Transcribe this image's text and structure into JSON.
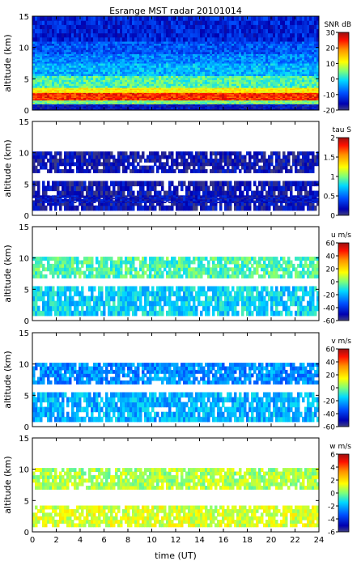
{
  "title": "Esrange MST radar 20101014",
  "xlabel": "time (UT)",
  "x_ticks": [
    "0",
    "2",
    "4",
    "6",
    "8",
    "10",
    "12",
    "14",
    "16",
    "18",
    "20",
    "22",
    "24"
  ],
  "chart_data": [
    {
      "type": "heatmap",
      "quantity": "SNR",
      "ylabel": "altitude (km)",
      "y_ticks": [
        "0",
        "5",
        "10",
        "15"
      ],
      "xlim": [
        0,
        24
      ],
      "ylim": [
        0,
        15
      ],
      "colorbar": {
        "label": "SNR dB",
        "ticks": [
          "30",
          "20",
          "10",
          "0",
          "-10",
          "-20"
        ],
        "range": [
          -20,
          30
        ]
      },
      "fill": "full",
      "layers": [
        {
          "y0": 0,
          "y1": 1,
          "value": -15
        },
        {
          "y0": 1,
          "y1": 1.6,
          "value": 5
        },
        {
          "y0": 1.6,
          "y1": 2.8,
          "value": 24
        },
        {
          "y0": 2.8,
          "y1": 3.6,
          "value": 12
        },
        {
          "y0": 3.6,
          "y1": 5.5,
          "value": 3
        },
        {
          "y0": 5.5,
          "y1": 7.5,
          "value": -3
        },
        {
          "y0": 7.5,
          "y1": 9,
          "value": -6
        },
        {
          "y0": 9,
          "y1": 11,
          "value": -9
        },
        {
          "y0": 11,
          "y1": 15,
          "value": -13
        }
      ]
    },
    {
      "type": "heatmap",
      "quantity": "tau",
      "ylabel": "altitude (km)",
      "y_ticks": [
        "0",
        "5",
        "10",
        "15"
      ],
      "xlim": [
        0,
        24
      ],
      "ylim": [
        0,
        15
      ],
      "colorbar": {
        "label": "tau S",
        "ticks": [
          "2",
          "1.5",
          "1",
          "0.5",
          "0"
        ],
        "range": [
          0,
          2
        ]
      },
      "fill": "bands",
      "layers": [
        {
          "y0": 0.8,
          "y1": 5.5,
          "value": 0.15
        },
        {
          "y0": 2.0,
          "y1": 3.2,
          "value": 0.2
        },
        {
          "y0": 6.8,
          "y1": 10.2,
          "value": 0.15
        }
      ]
    },
    {
      "type": "heatmap",
      "quantity": "u",
      "ylabel": "altitude (km)",
      "y_ticks": [
        "0",
        "5",
        "10",
        "15"
      ],
      "xlim": [
        0,
        24
      ],
      "ylim": [
        0,
        15
      ],
      "colorbar": {
        "label": "u m/s",
        "ticks": [
          "60",
          "40",
          "20",
          "0",
          "-20",
          "-40",
          "-60"
        ],
        "range": [
          -60,
          60
        ]
      },
      "fill": "bands",
      "layers": [
        {
          "y0": 0.8,
          "y1": 5.5,
          "value": -15
        },
        {
          "y0": 6.8,
          "y1": 10.2,
          "value": -5
        }
      ]
    },
    {
      "type": "heatmap",
      "quantity": "v",
      "ylabel": "altitude (km)",
      "y_ticks": [
        "0",
        "5",
        "10",
        "15"
      ],
      "xlim": [
        0,
        24
      ],
      "ylim": [
        0,
        15
      ],
      "colorbar": {
        "label": "v m/s",
        "ticks": [
          "60",
          "40",
          "20",
          "0",
          "-20",
          "-40",
          "-60"
        ],
        "range": [
          -60,
          60
        ]
      },
      "fill": "bands",
      "layers": [
        {
          "y0": 0.8,
          "y1": 5.5,
          "value": -20
        },
        {
          "y0": 6.8,
          "y1": 10.2,
          "value": -25
        }
      ]
    },
    {
      "type": "heatmap",
      "quantity": "w",
      "ylabel": "altitude (km)",
      "y_ticks": [
        "0",
        "5",
        "10",
        "15"
      ],
      "xlim": [
        0,
        24
      ],
      "ylim": [
        0,
        15
      ],
      "colorbar": {
        "label": "w m/s",
        "ticks": [
          "6",
          "4",
          "2",
          "0",
          "-2",
          "-4",
          "-6"
        ],
        "range": [
          -6,
          6
        ]
      },
      "fill": "bands",
      "layers": [
        {
          "y0": 0.8,
          "y1": 4.2,
          "value": 1
        },
        {
          "y0": 6.8,
          "y1": 10.2,
          "value": 0.5
        }
      ]
    }
  ]
}
